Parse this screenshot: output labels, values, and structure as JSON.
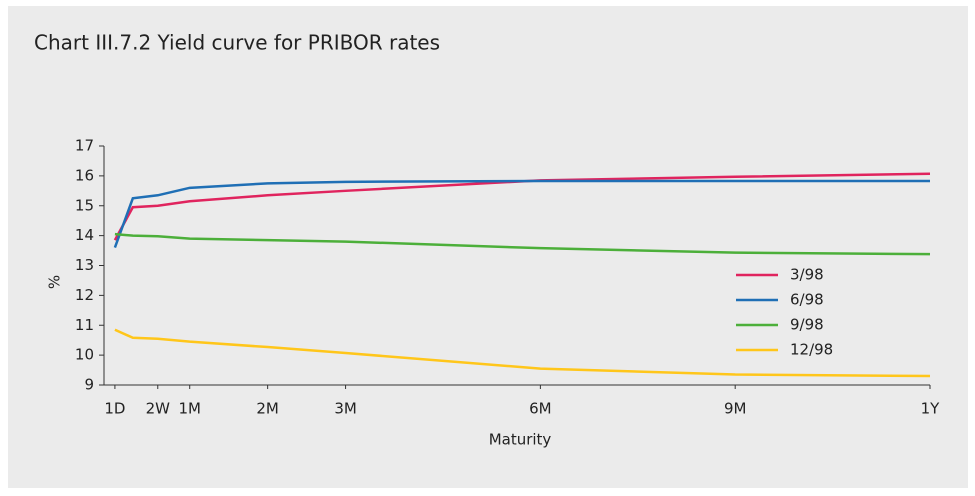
{
  "chart_data": {
    "type": "line",
    "title": "Chart III.7.2 Yield curve for PRIBOR rates",
    "x_label": "Maturity",
    "y_label": "%",
    "x": [
      -0.96,
      -0.73,
      -0.41,
      0,
      1,
      2,
      4.5,
      7,
      9.5
    ],
    "xlim": [
      -1.1,
      9.5
    ],
    "xticks": [
      {
        "value": -0.96,
        "label": "1D"
      },
      {
        "value": -0.41,
        "label": "2W"
      },
      {
        "value": 0,
        "label": "1M"
      },
      {
        "value": 1,
        "label": "2M"
      },
      {
        "value": 2,
        "label": "3M"
      },
      {
        "value": 4.5,
        "label": "6M"
      },
      {
        "value": 7,
        "label": "9M"
      },
      {
        "value": 9.5,
        "label": "1Y"
      }
    ],
    "ylim": [
      9,
      17
    ],
    "yticks": [
      9,
      10,
      11,
      12,
      13,
      14,
      15,
      16,
      17
    ],
    "legend": "right",
    "series": [
      {
        "name": "3/98",
        "color": "#e0245e",
        "values": [
          13.85,
          14.95,
          15.0,
          15.15,
          15.35,
          15.5,
          15.85,
          15.97,
          16.07
        ]
      },
      {
        "name": "6/98",
        "color": "#1f6fb5",
        "values": [
          13.6,
          15.25,
          15.35,
          15.6,
          15.75,
          15.8,
          15.83,
          15.83,
          15.83
        ]
      },
      {
        "name": "9/98",
        "color": "#4caf3a",
        "values": [
          14.05,
          14.0,
          13.98,
          13.9,
          13.85,
          13.8,
          13.58,
          13.43,
          13.38
        ]
      },
      {
        "name": "12/98",
        "color": "#ffc61a",
        "values": [
          10.85,
          10.58,
          10.55,
          10.45,
          10.27,
          10.07,
          9.55,
          9.35,
          9.3
        ]
      }
    ]
  }
}
